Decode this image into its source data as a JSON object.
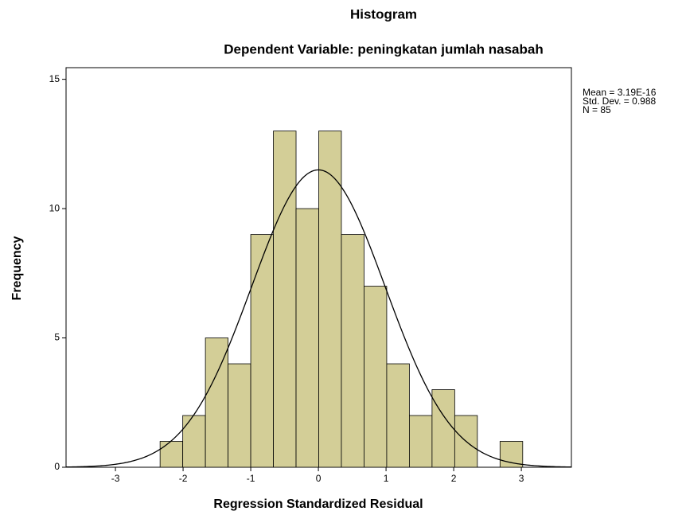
{
  "chart_data": {
    "type": "histogram",
    "title": "Histogram",
    "subtitle": "Dependent Variable: peningkatan jumlah nasabah",
    "x_label": "Regression Standardized Residual",
    "y_label": "Frequency",
    "bins": [
      -2.34,
      -2.005,
      -1.67,
      -1.335,
      -1.0,
      -0.665,
      -0.33,
      0.005,
      0.34,
      0.675,
      1.01,
      1.345,
      1.68,
      2.015,
      2.35,
      2.685,
      3.02
    ],
    "values": [
      1,
      2,
      5,
      4,
      9,
      13,
      10,
      13,
      9,
      7,
      4,
      2,
      3,
      2,
      0,
      1
    ],
    "color": "#d3ce97",
    "xlim": [
      -3.73,
      3.74
    ],
    "ylim": [
      0,
      15.45
    ],
    "xticks": [
      -3,
      -2,
      -1,
      0,
      1,
      2,
      3
    ],
    "yticks": [
      0,
      5,
      10,
      15
    ],
    "normal_curve": {
      "mean": 3.19e-16,
      "sd": 0.988,
      "n": 85
    },
    "stats_labels": [
      "Mean = 3.19E-16",
      "Std. Dev. = 0.988",
      "N = 85"
    ]
  }
}
